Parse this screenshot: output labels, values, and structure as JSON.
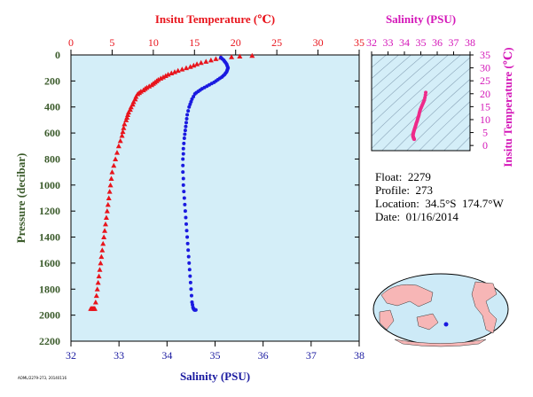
{
  "chart_data": [
    {
      "type": "scatter",
      "title_top": "Insitu Temperature (℃)",
      "xlabel_bottom": "Salinity (PSU)",
      "ylabel": "Pressure (decibar)",
      "temperature_axis": {
        "range": [
          0,
          35
        ],
        "ticks": [
          "0",
          "5",
          "10",
          "15",
          "20",
          "25",
          "30",
          "35"
        ]
      },
      "salinity_axis": {
        "range": [
          32,
          38
        ],
        "ticks": [
          "32",
          "33",
          "34",
          "35",
          "36",
          "37",
          "38"
        ]
      },
      "pressure_axis": {
        "range": [
          0,
          2200
        ],
        "inverted": true,
        "ticks": [
          "0",
          "200",
          "400",
          "600",
          "800",
          "1000",
          "1200",
          "1400",
          "1600",
          "1800",
          "2000",
          "2200"
        ]
      },
      "series": [
        {
          "color": "#e8141c",
          "marker": "triangle",
          "x": [
            22.0,
            20.5,
            19.5,
            18.2,
            17.6,
            17.0,
            16.4,
            15.8,
            15.3,
            14.9,
            14.5,
            14.0,
            13.5,
            13.0,
            12.6,
            12.2,
            11.8,
            11.5,
            11.2,
            10.9,
            10.6,
            10.4,
            10.2,
            10.0,
            9.8,
            9.5,
            9.2,
            9.0,
            8.8,
            8.5,
            8.3,
            8.1,
            7.9,
            7.8,
            7.6,
            7.5,
            7.3,
            7.2,
            7.0,
            6.9,
            6.8,
            6.7,
            6.5,
            6.4,
            6.3,
            6.2,
            6.0,
            5.8,
            5.6,
            5.4,
            5.2,
            5.0,
            4.9,
            4.8,
            4.7,
            4.6,
            4.5,
            4.4,
            4.3,
            4.2,
            4.1,
            4.0,
            3.9,
            3.8,
            3.7,
            3.6,
            3.5,
            3.4,
            3.3,
            3.2,
            3.1,
            3.0,
            2.9,
            2.8,
            2.7,
            2.6,
            2.5,
            2.4
          ],
          "y": [
            5,
            10,
            15,
            20,
            30,
            40,
            50,
            60,
            70,
            80,
            90,
            100,
            110,
            120,
            130,
            140,
            150,
            160,
            170,
            180,
            190,
            200,
            210,
            220,
            230,
            240,
            250,
            260,
            270,
            280,
            290,
            300,
            320,
            340,
            360,
            380,
            400,
            420,
            440,
            460,
            480,
            500,
            530,
            560,
            590,
            620,
            660,
            700,
            750,
            800,
            850,
            900,
            950,
            1000,
            1050,
            1100,
            1150,
            1200,
            1250,
            1300,
            1350,
            1400,
            1450,
            1500,
            1550,
            1600,
            1650,
            1700,
            1750,
            1800,
            1850,
            1900,
            1950,
            1950,
            1950,
            1950,
            1950,
            1950
          ]
        },
        {
          "color": "#1a1ae0",
          "marker": "circle",
          "x": [
            35.12,
            35.15,
            35.18,
            35.2,
            35.22,
            35.24,
            35.25,
            35.26,
            35.27,
            35.26,
            35.25,
            35.24,
            35.22,
            35.2,
            35.17,
            35.14,
            35.1,
            35.06,
            35.02,
            34.98,
            34.93,
            34.88,
            34.83,
            34.78,
            34.73,
            34.69,
            34.65,
            34.61,
            34.58,
            34.55,
            34.52,
            34.5,
            34.48,
            34.46,
            34.44,
            34.42,
            34.41,
            34.4,
            34.39,
            34.38,
            34.37,
            34.36,
            34.35,
            34.34,
            34.34,
            34.33,
            34.33,
            34.33,
            34.34,
            34.34,
            34.35,
            34.36,
            34.37,
            34.38,
            34.39,
            34.4,
            34.41,
            34.42,
            34.43,
            34.44,
            34.45,
            34.46,
            34.47,
            34.48,
            34.49,
            34.5,
            34.51,
            34.52,
            34.53,
            34.54,
            34.55,
            34.56,
            34.57,
            34.58,
            34.59,
            34.6
          ],
          "y": [
            20,
            30,
            40,
            50,
            60,
            70,
            80,
            90,
            100,
            110,
            120,
            130,
            140,
            150,
            160,
            170,
            180,
            190,
            200,
            210,
            220,
            230,
            240,
            250,
            260,
            270,
            280,
            290,
            300,
            320,
            340,
            360,
            380,
            400,
            430,
            460,
            490,
            520,
            550,
            580,
            610,
            640,
            680,
            720,
            760,
            800,
            850,
            900,
            950,
            1000,
            1050,
            1100,
            1150,
            1200,
            1250,
            1300,
            1350,
            1400,
            1450,
            1500,
            1550,
            1600,
            1650,
            1700,
            1750,
            1800,
            1850,
            1900,
            1920,
            1940,
            1950,
            1955,
            1960,
            1960,
            1960,
            1960
          ]
        }
      ]
    },
    {
      "type": "scatter",
      "title": "Salinity (PSU)",
      "ylabel": "Insitu Temperature (℃)",
      "salinity_axis": {
        "range": [
          32,
          38
        ],
        "ticks": [
          "32",
          "33",
          "34",
          "35",
          "36",
          "37",
          "38"
        ]
      },
      "temperature_axis": {
        "range": [
          -2,
          35
        ],
        "ticks": [
          "0",
          "5",
          "10",
          "15",
          "20",
          "25",
          "30",
          "35"
        ]
      },
      "series": [
        {
          "color": "#ee2a8a",
          "marker": "circle",
          "x": [
            35.3,
            35.28,
            35.25,
            35.22,
            35.18,
            35.14,
            35.1,
            35.06,
            35.02,
            34.98,
            34.95,
            34.92,
            34.9,
            34.88,
            34.85,
            34.82,
            34.8,
            34.78,
            34.75,
            34.72,
            34.7,
            34.68,
            34.66,
            34.64,
            34.62,
            34.6,
            34.58,
            34.56,
            34.55,
            34.54,
            34.53,
            34.52,
            34.52,
            34.53,
            34.54,
            34.55,
            34.56,
            34.57,
            34.58,
            34.59,
            34.6
          ],
          "y": [
            20.5,
            19.5,
            18.5,
            17.6,
            17.0,
            16.4,
            15.8,
            15.2,
            14.6,
            14.0,
            13.4,
            12.8,
            12.2,
            11.6,
            11.0,
            10.5,
            10.0,
            9.5,
            9.0,
            8.5,
            8.0,
            7.6,
            7.2,
            6.8,
            6.4,
            6.0,
            5.6,
            5.2,
            4.9,
            4.6,
            4.3,
            4.0,
            3.7,
            3.5,
            3.3,
            3.1,
            2.9,
            2.7,
            2.6,
            2.5,
            2.4
          ]
        }
      ]
    }
  ],
  "float_info": {
    "float": "Float:  2279",
    "profile": "Profile:  273",
    "location": "Location:  34.5°S  174.7°W",
    "date": "Date:  01/16/2014"
  },
  "footer_tag": "AOML/2279-273, 20140116"
}
